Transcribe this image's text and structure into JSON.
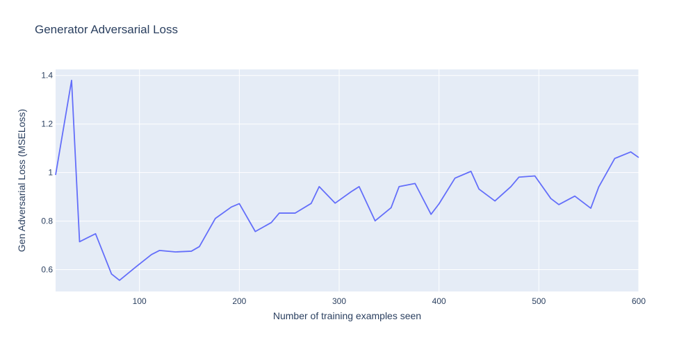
{
  "chart_data": {
    "type": "line",
    "title": "Generator Adversarial Loss",
    "xlabel": "Number of training examples seen",
    "ylabel": "Gen Adversarial Loss (MSELoss)",
    "xlim": [
      16,
      600
    ],
    "ylim": [
      0.51,
      1.425
    ],
    "x_ticks": [
      100,
      200,
      300,
      400,
      500,
      600
    ],
    "x_tick_labels": [
      "100",
      "200",
      "300",
      "400",
      "500",
      "600"
    ],
    "y_ticks": [
      0.6,
      0.8,
      1.0,
      1.2,
      1.4
    ],
    "y_tick_labels": [
      "0.6",
      "0.8",
      "1",
      "1.2",
      "1.4"
    ],
    "grid": true,
    "legend": "none",
    "colors": {
      "line": "#636efa",
      "plot_bg": "#e5ecf6",
      "grid": "#ffffff",
      "text": "#2a3f5f"
    },
    "series": [
      {
        "x": [
          16,
          32,
          40,
          56,
          72,
          80,
          96,
          112,
          120,
          136,
          152,
          160,
          176,
          192,
          200,
          216,
          232,
          240,
          256,
          272,
          280,
          296,
          312,
          320,
          336,
          352,
          360,
          376,
          392,
          400,
          416,
          432,
          440,
          456,
          472,
          480,
          496,
          512,
          520,
          536,
          552,
          560,
          576,
          592,
          600
        ],
        "y": [
          0.99,
          1.38,
          0.715,
          0.748,
          0.582,
          0.556,
          0.61,
          0.662,
          0.679,
          0.673,
          0.676,
          0.695,
          0.811,
          0.858,
          0.872,
          0.757,
          0.794,
          0.833,
          0.833,
          0.873,
          0.942,
          0.874,
          0.921,
          0.942,
          0.801,
          0.855,
          0.942,
          0.955,
          0.828,
          0.871,
          0.977,
          1.005,
          0.932,
          0.883,
          0.942,
          0.981,
          0.986,
          0.893,
          0.868,
          0.903,
          0.853,
          0.941,
          1.058,
          1.085,
          1.062
        ]
      }
    ]
  }
}
